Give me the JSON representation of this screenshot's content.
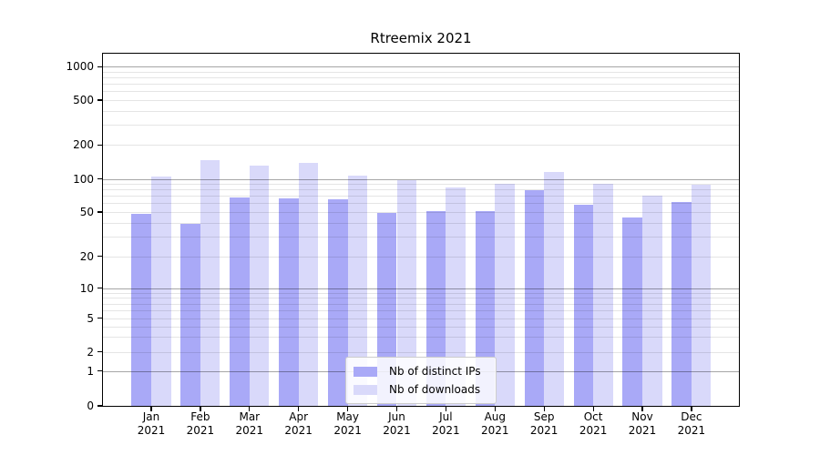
{
  "chart_data": {
    "type": "bar",
    "title": "Rtreemix 2021",
    "year": "2021",
    "months": [
      "Jan",
      "Feb",
      "Mar",
      "Apr",
      "May",
      "Jun",
      "Jul",
      "Aug",
      "Sep",
      "Oct",
      "Nov",
      "Dec"
    ],
    "categories": [
      "Jan 2021",
      "Feb 2021",
      "Mar 2021",
      "Apr 2021",
      "May 2021",
      "Jun 2021",
      "Jul 2021",
      "Aug 2021",
      "Sep 2021",
      "Oct 2021",
      "Nov 2021",
      "Dec 2021"
    ],
    "series": [
      {
        "name": "Nb of distinct IPs",
        "color": "#a9a9f7",
        "values": [
          48,
          39,
          68,
          67,
          65,
          49,
          51,
          51,
          79,
          58,
          45,
          62
        ]
      },
      {
        "name": "Nb of downloads",
        "color": "#d9d9fa",
        "values": [
          106,
          148,
          132,
          139,
          108,
          97,
          83,
          90,
          116,
          91,
          70,
          88
        ]
      }
    ],
    "yscale": "symlog",
    "yticks": [
      0,
      1,
      2,
      5,
      10,
      20,
      50,
      100,
      200,
      500,
      1000
    ],
    "ylim": [
      0,
      1280
    ],
    "xlabel": "",
    "ylabel": "",
    "grid": true,
    "legend_position": "inside-bottom-center",
    "colors": {
      "axis": "#000000",
      "major_grid": "#a6a6a6",
      "minor_grid": "#e5e5e5",
      "background": "#ffffff"
    }
  }
}
